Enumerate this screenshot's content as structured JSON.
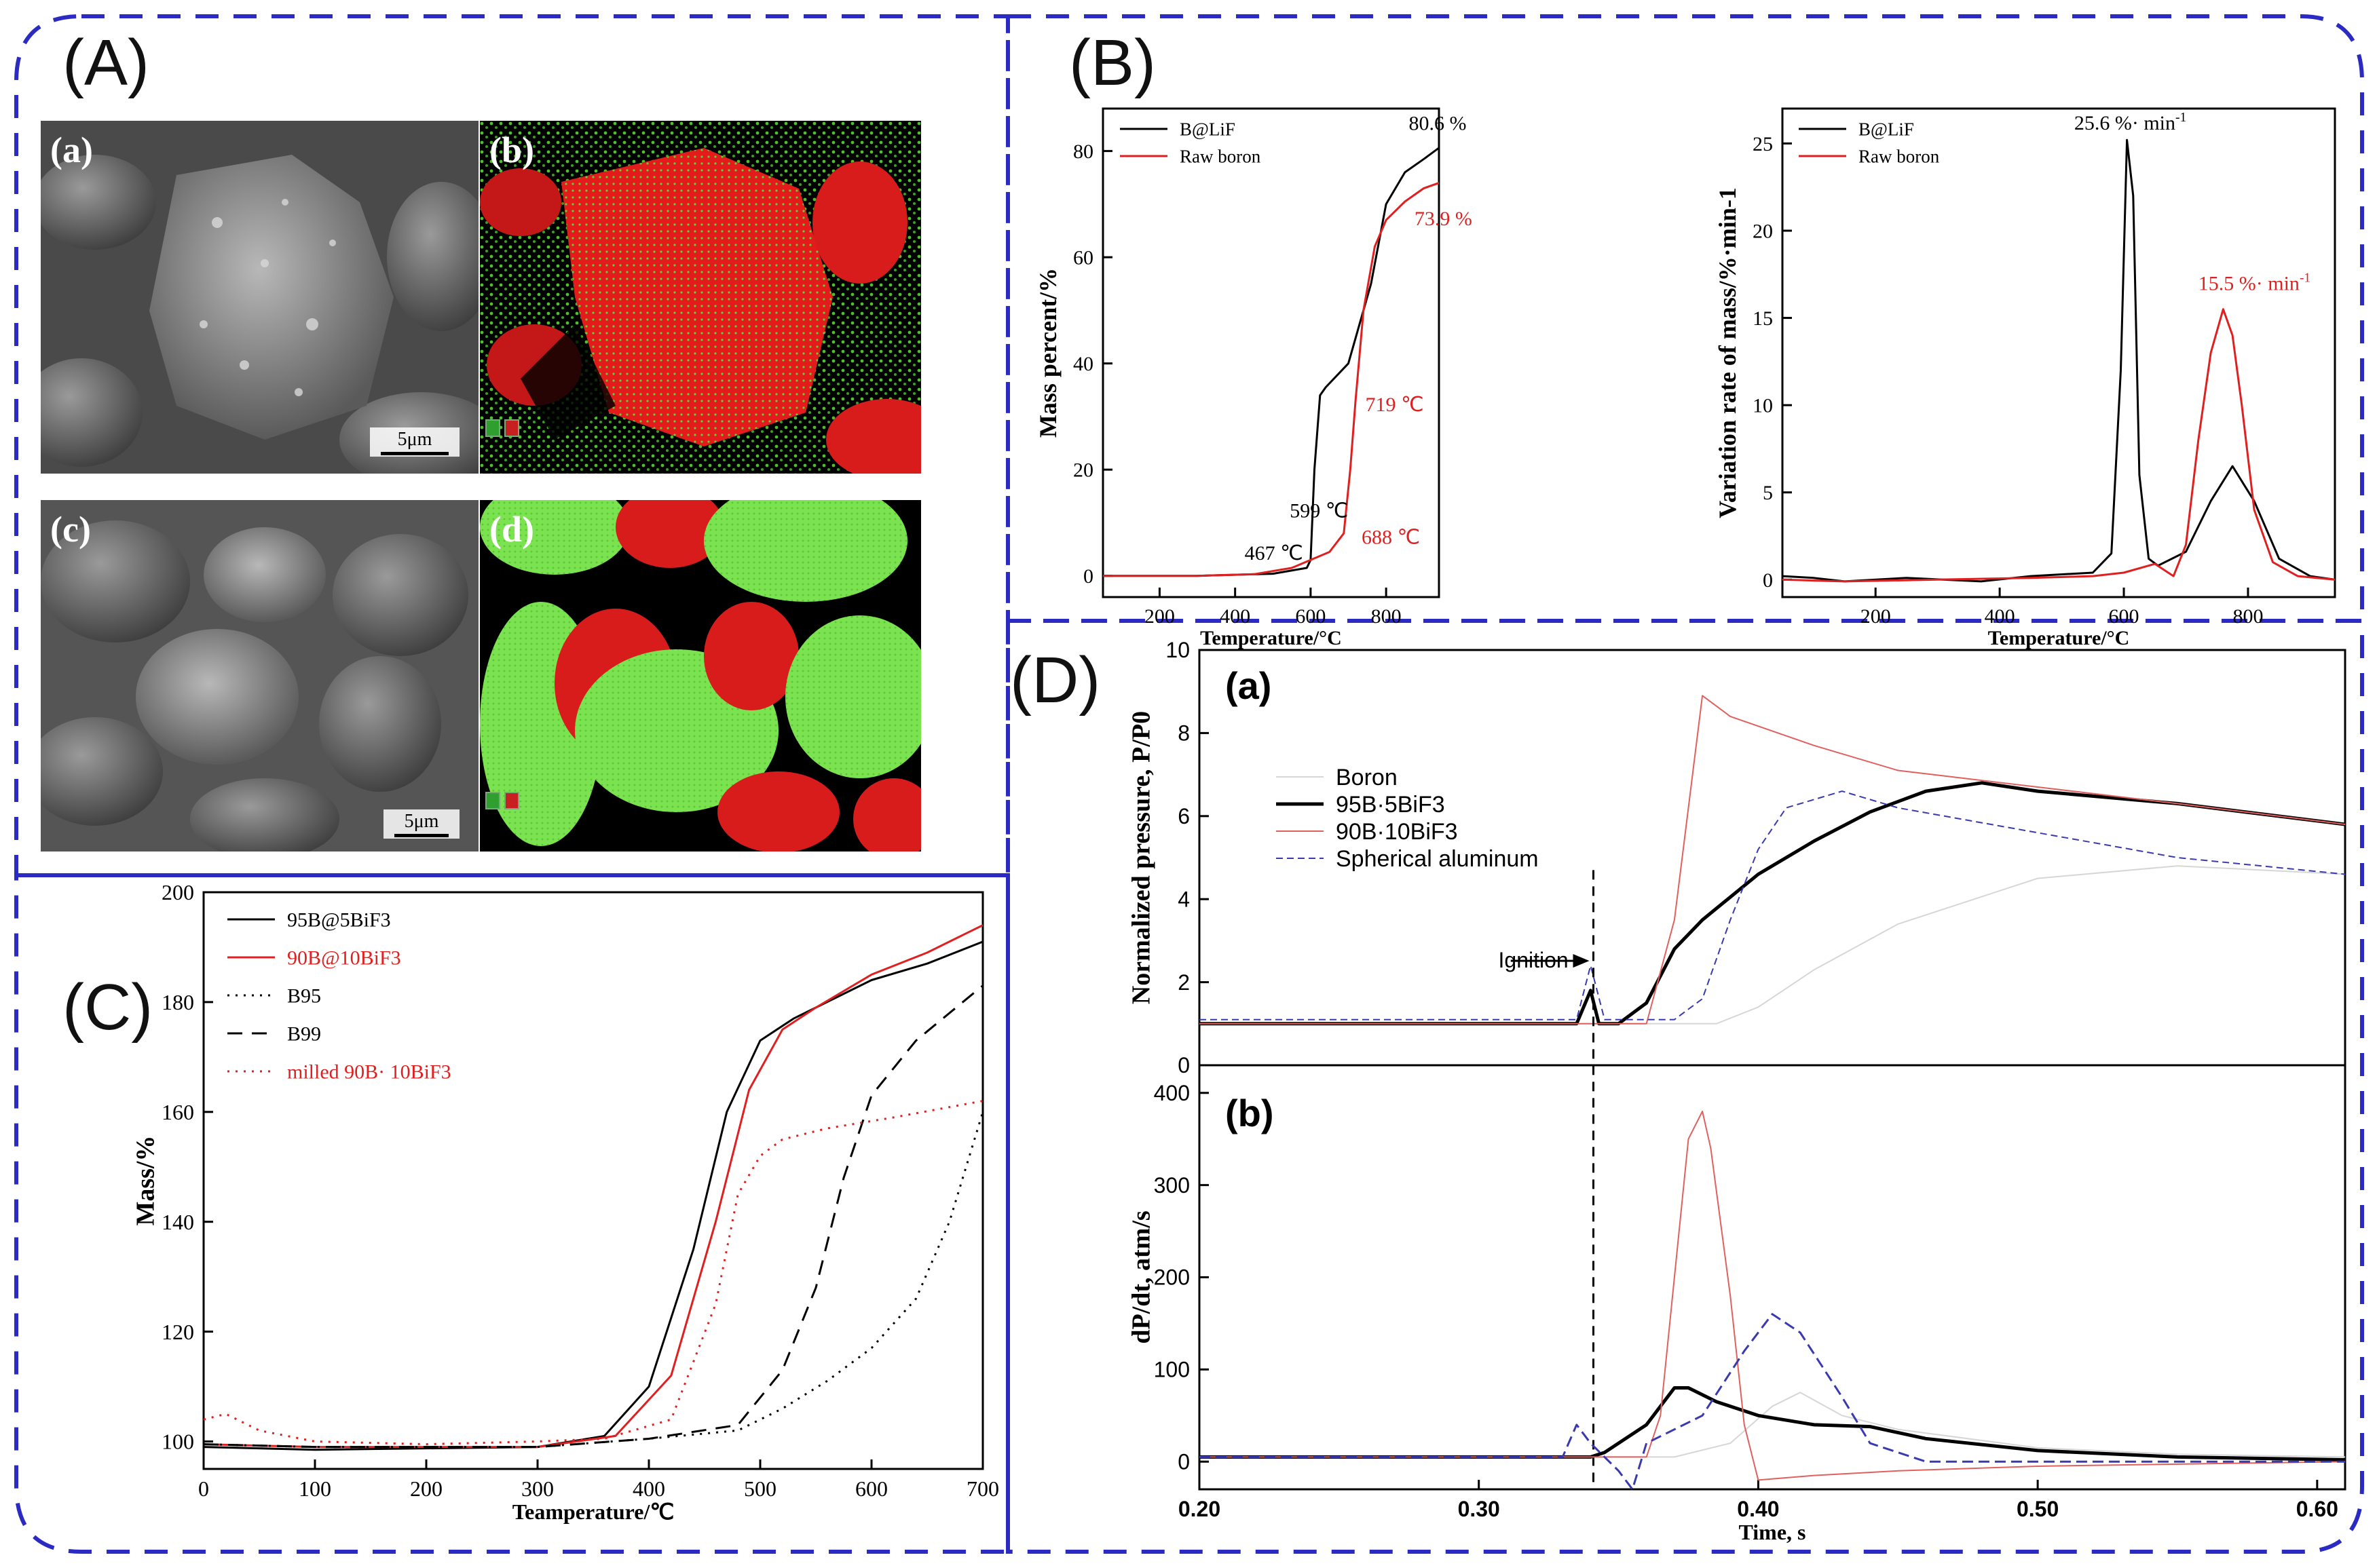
{
  "panels": {
    "A": {
      "label": "(A)",
      "images": [
        {
          "label": "(a)",
          "kind": "sem",
          "scale": "5μm"
        },
        {
          "label": "(b)",
          "kind": "eds"
        },
        {
          "label": "(c)",
          "kind": "sem",
          "scale": "5μm"
        },
        {
          "label": "(d)",
          "kind": "eds"
        }
      ]
    },
    "B": {
      "label": "(B)"
    },
    "C": {
      "label": "(C)"
    },
    "D": {
      "label": "(D)"
    }
  },
  "colors": {
    "frame": "#2b2bc4",
    "red": "#e02020",
    "green": "#5fe03a",
    "black": "#000000",
    "blue": "#1a1aa0",
    "gray": "#c8c8c8"
  },
  "chart_data": [
    {
      "id": "B1",
      "type": "line",
      "xlabel": "Temperature/°C",
      "ylabel": "Mass percent/%",
      "xlim": [
        50,
        940
      ],
      "ylim": [
        -4,
        88
      ],
      "xticks": [
        200,
        400,
        600,
        800
      ],
      "yticks": [
        0,
        20,
        40,
        60,
        80
      ],
      "legend": "top-left",
      "series": [
        {
          "name": "B@LiF",
          "color": "#000000",
          "x": [
            50,
            300,
            500,
            590,
            600,
            610,
            625,
            640,
            700,
            760,
            800,
            850,
            900,
            940
          ],
          "y": [
            0,
            0,
            0.4,
            1.5,
            3,
            20,
            34,
            35.5,
            40,
            55,
            70,
            76,
            78.5,
            80.6
          ]
        },
        {
          "name": "Raw boron",
          "color": "#e02020",
          "x": [
            50,
            300,
            450,
            550,
            650,
            688,
            705,
            719,
            740,
            770,
            800,
            850,
            900,
            940
          ],
          "y": [
            0,
            0,
            0.3,
            1.5,
            4.5,
            8,
            20,
            33,
            50,
            62,
            67,
            70.5,
            73,
            74
          ]
        }
      ],
      "annotations": [
        {
          "text": "80.6 %",
          "x": 860,
          "y": 84,
          "color": "#000000"
        },
        {
          "text": "73.9 %",
          "x": 875,
          "y": 66,
          "color": "#e02020"
        },
        {
          "text": "719 ℃",
          "x": 745,
          "y": 31,
          "color": "#e02020"
        },
        {
          "text": "599 ℃",
          "x": 545,
          "y": 11,
          "color": "#000000"
        },
        {
          "text": "688 ℃",
          "x": 735,
          "y": 6,
          "color": "#e02020"
        },
        {
          "text": "467 ℃",
          "x": 425,
          "y": 3,
          "color": "#000000"
        }
      ]
    },
    {
      "id": "B2",
      "type": "line",
      "xlabel": "Temperature/°C",
      "ylabel": "Variation rate of mass/%·min-1",
      "xlim": [
        50,
        940
      ],
      "ylim": [
        -1,
        27
      ],
      "xticks": [
        200,
        400,
        600,
        800
      ],
      "yticks": [
        0,
        5,
        10,
        15,
        20,
        25
      ],
      "legend": "top-left",
      "series": [
        {
          "name": "B@LiF",
          "color": "#000000",
          "x": [
            50,
            100,
            150,
            250,
            370,
            450,
            550,
            580,
            595,
            605,
            615,
            625,
            640,
            655,
            700,
            740,
            775,
            810,
            850,
            900,
            940
          ],
          "y": [
            0.2,
            0.1,
            -0.1,
            0.1,
            -0.1,
            0.2,
            0.4,
            1.5,
            12,
            25.2,
            22,
            6,
            1.2,
            0.8,
            1.6,
            4.5,
            6.5,
            4.5,
            1.2,
            0.2,
            0
          ]
        },
        {
          "name": "Raw boron",
          "color": "#e02020",
          "x": [
            50,
            150,
            300,
            450,
            550,
            600,
            650,
            680,
            700,
            720,
            740,
            760,
            775,
            790,
            810,
            840,
            880,
            940
          ],
          "y": [
            0,
            -0.1,
            0,
            0.1,
            0.2,
            0.4,
            0.9,
            0.2,
            2,
            8,
            13,
            15.5,
            14,
            10,
            4,
            1,
            0.2,
            0
          ]
        }
      ],
      "annotations": [
        {
          "text": "25.6 %· min",
          "sup": "-1",
          "x": 520,
          "y": 25.8,
          "color": "#000000"
        },
        {
          "text": "15.5 %· min",
          "sup": "-1",
          "x": 720,
          "y": 16.6,
          "color": "#e02020"
        }
      ]
    },
    {
      "id": "C",
      "type": "line",
      "xlabel": "Teamperature/℃",
      "ylabel": "Mass/%",
      "xlim": [
        0,
        700
      ],
      "ylim": [
        95,
        200
      ],
      "xticks": [
        0,
        100,
        200,
        300,
        400,
        500,
        600,
        700
      ],
      "yticks": [
        100,
        120,
        140,
        160,
        180,
        200
      ],
      "legend": "top-left",
      "series": [
        {
          "name": "95B@5BiF3",
          "color": "#000000",
          "dash": "",
          "x": [
            0,
            100,
            300,
            360,
            400,
            440,
            470,
            500,
            530,
            560,
            600,
            650,
            700
          ],
          "y": [
            99,
            98.5,
            99,
            101,
            110,
            135,
            160,
            173,
            177,
            180,
            184,
            187,
            191
          ]
        },
        {
          "name": "90B@10BiF3",
          "color": "#e02020",
          "dash": "",
          "x": [
            0,
            100,
            300,
            370,
            420,
            460,
            490,
            520,
            550,
            600,
            650,
            700
          ],
          "y": [
            99.5,
            99,
            99,
            101,
            112,
            140,
            164,
            175,
            179,
            185,
            189,
            194
          ]
        },
        {
          "name": "B95",
          "color": "#000000",
          "dash": "3,9",
          "x": [
            0,
            100,
            300,
            400,
            480,
            520,
            560,
            600,
            640,
            670,
            700
          ],
          "y": [
            99.5,
            99,
            99,
            100.5,
            102,
            106,
            111,
            117,
            126,
            140,
            160
          ]
        },
        {
          "name": "B99",
          "color": "#000000",
          "dash": "22,14",
          "x": [
            0,
            100,
            300,
            400,
            480,
            520,
            550,
            575,
            600,
            640,
            700
          ],
          "y": [
            99.5,
            99,
            99,
            100.5,
            103,
            113,
            128,
            148,
            163,
            173,
            183
          ]
        },
        {
          "name": "milled 90B· 10BiF3",
          "color": "#e02020",
          "dash": "3,9",
          "x": [
            0,
            20,
            50,
            100,
            200,
            300,
            360,
            420,
            460,
            480,
            500,
            520,
            560,
            620,
            700
          ],
          "y": [
            104,
            105,
            102,
            100,
            99.5,
            100,
            100.5,
            104,
            125,
            145,
            152,
            155,
            157,
            159,
            162
          ]
        }
      ]
    },
    {
      "id": "D-a",
      "type": "line",
      "xlabel": "",
      "ylabel": "Normalized pressure, P/P0",
      "xlim": [
        0.2,
        0.61
      ],
      "ylim": [
        0,
        10
      ],
      "yticks": [
        0,
        2,
        4,
        6,
        8,
        10
      ],
      "legend": "center-left",
      "series": [
        {
          "name": "Boron",
          "color": "#d6d6d6",
          "width": 2,
          "x": [
            0.2,
            0.34,
            0.37,
            0.385,
            0.4,
            0.42,
            0.45,
            0.5,
            0.55,
            0.61
          ],
          "y": [
            1.0,
            1.0,
            1.0,
            1.0,
            1.4,
            2.3,
            3.4,
            4.5,
            4.8,
            4.6
          ]
        },
        {
          "name": "95B·5BiF3",
          "color": "#000000",
          "width": 5,
          "x": [
            0.2,
            0.335,
            0.34,
            0.343,
            0.35,
            0.36,
            0.37,
            0.38,
            0.4,
            0.42,
            0.44,
            0.46,
            0.48,
            0.5,
            0.55,
            0.61
          ],
          "y": [
            1.0,
            1.0,
            1.8,
            1.0,
            1.0,
            1.5,
            2.8,
            3.5,
            4.6,
            5.4,
            6.1,
            6.6,
            6.8,
            6.6,
            6.3,
            5.8
          ]
        },
        {
          "name": "90B·10BiF3",
          "color": "#e06060",
          "width": 2,
          "x": [
            0.2,
            0.36,
            0.37,
            0.38,
            0.39,
            0.42,
            0.45,
            0.5,
            0.55,
            0.61
          ],
          "y": [
            1.0,
            1.0,
            3.5,
            8.9,
            8.4,
            7.7,
            7.1,
            6.7,
            6.3,
            5.8
          ]
        },
        {
          "name": "Spherical aluminum",
          "color": "#3a3ab0",
          "width": 2,
          "dash": "10,6",
          "x": [
            0.2,
            0.335,
            0.34,
            0.345,
            0.37,
            0.38,
            0.39,
            0.4,
            0.41,
            0.43,
            0.45,
            0.5,
            0.55,
            0.61
          ],
          "y": [
            1.1,
            1.1,
            2.4,
            1.1,
            1.1,
            1.6,
            3.5,
            5.2,
            6.2,
            6.6,
            6.2,
            5.6,
            5.0,
            4.6
          ]
        }
      ],
      "annotations": [
        {
          "text": "Ignition",
          "x": 0.307,
          "y": 2.35
        }
      ]
    },
    {
      "id": "D-b",
      "type": "line",
      "xlabel": "Time, s",
      "ylabel": "dP/dt, atm/s",
      "xlim": [
        0.2,
        0.61
      ],
      "ylim": [
        -30,
        430
      ],
      "xticks": [
        0.2,
        0.3,
        0.4,
        0.5,
        0.6
      ],
      "xticklabels": [
        "0.20",
        "0.30",
        "0.40",
        "0.50",
        "0.60"
      ],
      "yticks": [
        0,
        100,
        200,
        300,
        400
      ],
      "series": [
        {
          "name": "Boron",
          "color": "#d6d6d6",
          "width": 2,
          "x": [
            0.2,
            0.37,
            0.39,
            0.405,
            0.415,
            0.43,
            0.45,
            0.5,
            0.55,
            0.61
          ],
          "y": [
            5,
            5,
            20,
            60,
            75,
            50,
            35,
            15,
            8,
            5
          ]
        },
        {
          "name": "95B·5BiF3",
          "color": "#000000",
          "width": 5,
          "x": [
            0.2,
            0.34,
            0.345,
            0.36,
            0.37,
            0.375,
            0.385,
            0.4,
            0.42,
            0.44,
            0.46,
            0.5,
            0.55,
            0.61
          ],
          "y": [
            5,
            5,
            10,
            40,
            80,
            80,
            65,
            50,
            40,
            38,
            25,
            12,
            5,
            2
          ]
        },
        {
          "name": "90B·10BiF3",
          "color": "#e06060",
          "width": 2,
          "x": [
            0.2,
            0.36,
            0.365,
            0.37,
            0.375,
            0.38,
            0.383,
            0.39,
            0.395,
            0.4,
            0.42,
            0.45,
            0.5,
            0.61
          ],
          "y": [
            5,
            5,
            50,
            200,
            350,
            380,
            340,
            180,
            40,
            -20,
            -15,
            -10,
            -5,
            0
          ]
        },
        {
          "name": "Spherical aluminum",
          "color": "#3a3ab0",
          "width": 3,
          "dash": "16,8",
          "x": [
            0.2,
            0.33,
            0.335,
            0.34,
            0.35,
            0.355,
            0.36,
            0.38,
            0.395,
            0.405,
            0.415,
            0.43,
            0.44,
            0.46,
            0.5,
            0.61
          ],
          "y": [
            5,
            5,
            40,
            20,
            -10,
            -30,
            20,
            50,
            120,
            160,
            140,
            70,
            20,
            0,
            0,
            0
          ]
        }
      ]
    }
  ]
}
